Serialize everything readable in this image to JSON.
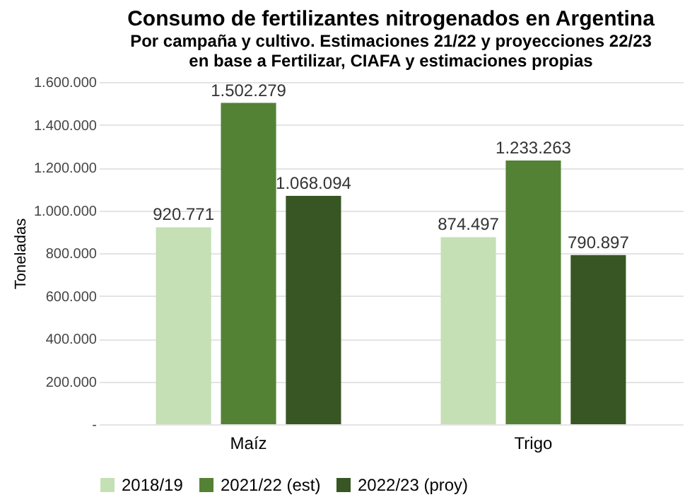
{
  "chart_data": {
    "type": "bar",
    "title": "Consumo de fertilizantes nitrogenados en Argentina",
    "subtitle": "Por campaña y cultivo. Estimaciones 21/22 y proyecciones 22/23",
    "annotations": [
      "en base a Fertilizar, CIAFA y estimaciones propias"
    ],
    "ylabel": "Toneladas",
    "categories": [
      "Maíz",
      "Trigo"
    ],
    "series": [
      {
        "name": "2018/19",
        "color": "#c5e0b4",
        "values": [
          920771,
          874497
        ],
        "value_labels": [
          "920.771",
          "874.497"
        ]
      },
      {
        "name": "2021/22 (est)",
        "color": "#548235",
        "values": [
          1502279,
          1233263
        ],
        "value_labels": [
          "1.502.279",
          "1.233.263"
        ]
      },
      {
        "name": "2022/23 (proy)",
        "color": "#375623",
        "values": [
          1068094,
          790897
        ],
        "value_labels": [
          "1.068.094",
          "790.897"
        ]
      }
    ],
    "ylim": [
      0,
      1600000
    ],
    "yticks": [
      {
        "value": 0,
        "label": "-"
      },
      {
        "value": 200000,
        "label": "200.000"
      },
      {
        "value": 400000,
        "label": "400.000"
      },
      {
        "value": 600000,
        "label": "600.000"
      },
      {
        "value": 800000,
        "label": "800.000"
      },
      {
        "value": 1000000,
        "label": "1.000.000"
      },
      {
        "value": 1200000,
        "label": "1.200.000"
      },
      {
        "value": 1400000,
        "label": "1.400.000"
      },
      {
        "value": 1600000,
        "label": "1.600.000"
      }
    ],
    "grid": "y",
    "legend": "bottom"
  }
}
